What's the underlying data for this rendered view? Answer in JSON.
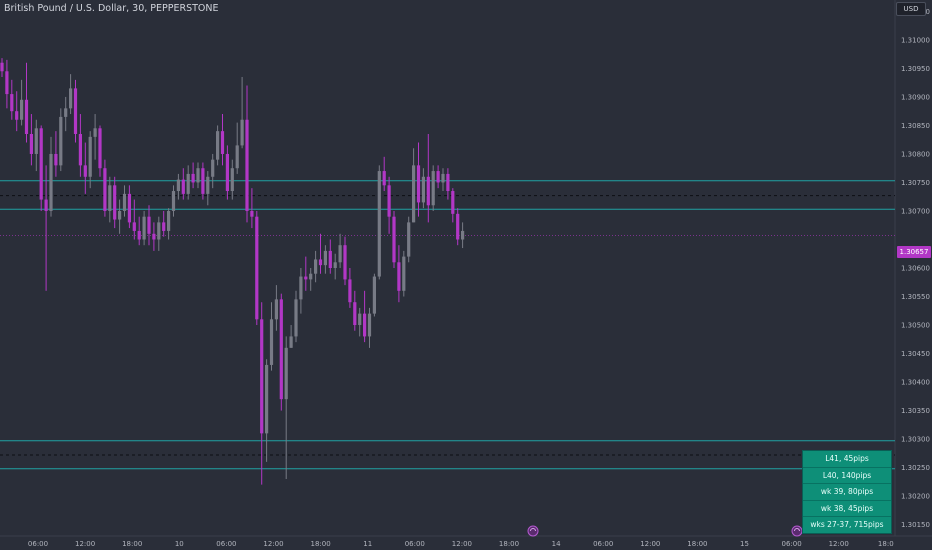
{
  "header": {
    "symbol_title": "British Pound / U.S. Dollar, 30, PEPPERSTONE",
    "currency_button": "USD"
  },
  "price_scale": {
    "last_price": "1.30657"
  },
  "pips_panel": {
    "rows": [
      "L41, 45pips",
      "L40, 140pips",
      "wk 39, 80pips",
      "wk 38, 45pips",
      "wks 27-37, 715pips"
    ]
  },
  "colors": {
    "background": "#2a2e39",
    "bull_candle": "#787b86",
    "bear_candle": "#b237c6",
    "horizontal_line": "#1fa2a3",
    "dashed_line": "#0c0e14",
    "pips_panel": "#0e8f78"
  },
  "chart_data": {
    "type": "candlestick",
    "title": "British Pound / U.S. Dollar, 30, PEPPERSTONE",
    "ylim": [
      1.3013,
      1.3107
    ],
    "y_ticks": [
      "1.31050",
      "1.31000",
      "1.30950",
      "1.30900",
      "1.30850",
      "1.30800",
      "1.30750",
      "1.30700",
      "1.30600",
      "1.30550",
      "1.30500",
      "1.30450",
      "1.30400",
      "1.30350",
      "1.30300",
      "1.30250",
      "1.30200",
      "1.30150"
    ],
    "x_ticks": [
      "06:00",
      "12:00",
      "18:00",
      "10",
      "06:00",
      "12:00",
      "18:00",
      "11",
      "06:00",
      "12:00",
      "18:00",
      "14",
      "06:00",
      "12:00",
      "18:00",
      "15",
      "06:00",
      "12:00",
      "18:0"
    ],
    "horizontal_levels": [
      1.30753,
      1.30703,
      1.30297,
      1.30248
    ],
    "dashed_levels": [
      1.30727,
      1.30272
    ],
    "last_price": 1.30657,
    "candles": [
      [
        1.3096,
        1.30968,
        1.30935,
        1.30945
      ],
      [
        1.30945,
        1.30965,
        1.3088,
        1.30905
      ],
      [
        1.30905,
        1.3093,
        1.3086,
        1.30875
      ],
      [
        1.30875,
        1.3091,
        1.3084,
        1.3086
      ],
      [
        1.3086,
        1.3093,
        1.3085,
        1.30895
      ],
      [
        1.30895,
        1.3096,
        1.3082,
        1.30835
      ],
      [
        1.30835,
        1.3087,
        1.3078,
        1.308
      ],
      [
        1.308,
        1.3086,
        1.3077,
        1.30845
      ],
      [
        1.30845,
        1.3085,
        1.307,
        1.3072
      ],
      [
        1.3072,
        1.3078,
        1.3056,
        1.307
      ],
      [
        1.307,
        1.3083,
        1.3069,
        1.308
      ],
      [
        1.308,
        1.3084,
        1.3076,
        1.3078
      ],
      [
        1.3078,
        1.3088,
        1.3077,
        1.30865
      ],
      [
        1.30865,
        1.309,
        1.3084,
        1.3088
      ],
      [
        1.3088,
        1.3094,
        1.3087,
        1.30915
      ],
      [
        1.30915,
        1.3093,
        1.3082,
        1.30835
      ],
      [
        1.30835,
        1.3087,
        1.3076,
        1.3078
      ],
      [
        1.3078,
        1.3082,
        1.3073,
        1.3076
      ],
      [
        1.3076,
        1.3084,
        1.3074,
        1.3083
      ],
      [
        1.3083,
        1.3087,
        1.3079,
        1.30845
      ],
      [
        1.30845,
        1.3085,
        1.3076,
        1.30775
      ],
      [
        1.30775,
        1.3079,
        1.3069,
        1.307
      ],
      [
        1.307,
        1.3076,
        1.3068,
        1.30745
      ],
      [
        1.30745,
        1.3076,
        1.3067,
        1.30685
      ],
      [
        1.30685,
        1.3072,
        1.3066,
        1.307
      ],
      [
        1.307,
        1.30745,
        1.3069,
        1.3073
      ],
      [
        1.3073,
        1.30745,
        1.3067,
        1.3068
      ],
      [
        1.3068,
        1.3072,
        1.3065,
        1.30665
      ],
      [
        1.30665,
        1.3069,
        1.3064,
        1.3065
      ],
      [
        1.3065,
        1.307,
        1.3064,
        1.3069
      ],
      [
        1.3069,
        1.3071,
        1.3064,
        1.3066
      ],
      [
        1.3066,
        1.3068,
        1.3063,
        1.3065
      ],
      [
        1.3065,
        1.3069,
        1.3063,
        1.3068
      ],
      [
        1.3068,
        1.307,
        1.30655,
        1.30665
      ],
      [
        1.30665,
        1.30705,
        1.3065,
        1.307
      ],
      [
        1.307,
        1.30745,
        1.3069,
        1.30735
      ],
      [
        1.30735,
        1.30765,
        1.3072,
        1.30755
      ],
      [
        1.30755,
        1.30775,
        1.3072,
        1.3073
      ],
      [
        1.3073,
        1.3078,
        1.3072,
        1.30765
      ],
      [
        1.30765,
        1.30785,
        1.3074,
        1.3075
      ],
      [
        1.3075,
        1.30785,
        1.3074,
        1.30775
      ],
      [
        1.30775,
        1.30785,
        1.3072,
        1.3073
      ],
      [
        1.3073,
        1.3077,
        1.3071,
        1.3076
      ],
      [
        1.3076,
        1.308,
        1.3074,
        1.3079
      ],
      [
        1.3079,
        1.3085,
        1.3078,
        1.3084
      ],
      [
        1.3084,
        1.3087,
        1.3078,
        1.308
      ],
      [
        1.308,
        1.30815,
        1.3072,
        1.30735
      ],
      [
        1.30735,
        1.3079,
        1.3072,
        1.30775
      ],
      [
        1.30775,
        1.30855,
        1.30765,
        1.30815
      ],
      [
        1.30815,
        1.30935,
        1.3081,
        1.3086
      ],
      [
        1.3086,
        1.3092,
        1.3068,
        1.307
      ],
      [
        1.307,
        1.3074,
        1.3067,
        1.3069
      ],
      [
        1.3069,
        1.307,
        1.305,
        1.3051
      ],
      [
        1.3051,
        1.3054,
        1.3022,
        1.3031
      ],
      [
        1.3031,
        1.3044,
        1.3026,
        1.3043
      ],
      [
        1.3043,
        1.3054,
        1.3042,
        1.3051
      ],
      [
        1.3051,
        1.3057,
        1.3049,
        1.30545
      ],
      [
        1.30545,
        1.30555,
        1.3035,
        1.3037
      ],
      [
        1.3037,
        1.3048,
        1.3023,
        1.3046
      ],
      [
        1.3046,
        1.305,
        1.3046,
        1.3048
      ],
      [
        1.3048,
        1.3056,
        1.3047,
        1.30545
      ],
      [
        1.30545,
        1.306,
        1.3052,
        1.30585
      ],
      [
        1.30585,
        1.3062,
        1.3056,
        1.3058
      ],
      [
        1.3058,
        1.306,
        1.3056,
        1.3059
      ],
      [
        1.3059,
        1.3063,
        1.30575,
        1.30615
      ],
      [
        1.30615,
        1.3066,
        1.3059,
        1.30605
      ],
      [
        1.30605,
        1.3064,
        1.3059,
        1.3063
      ],
      [
        1.3063,
        1.3065,
        1.3059,
        1.306
      ],
      [
        1.306,
        1.30625,
        1.3058,
        1.3061
      ],
      [
        1.3061,
        1.3066,
        1.306,
        1.3064
      ],
      [
        1.3064,
        1.30655,
        1.3057,
        1.3058
      ],
      [
        1.3058,
        1.306,
        1.3053,
        1.3054
      ],
      [
        1.3054,
        1.3056,
        1.3049,
        1.305
      ],
      [
        1.305,
        1.3053,
        1.3048,
        1.3052
      ],
      [
        1.3052,
        1.3056,
        1.3047,
        1.3048
      ],
      [
        1.3048,
        1.3053,
        1.3046,
        1.3052
      ],
      [
        1.3052,
        1.3059,
        1.30515,
        1.30585
      ],
      [
        1.30585,
        1.3078,
        1.3058,
        1.3077
      ],
      [
        1.3077,
        1.30795,
        1.30735,
        1.30745
      ],
      [
        1.30745,
        1.3076,
        1.3066,
        1.3069
      ],
      [
        1.3069,
        1.307,
        1.306,
        1.3061
      ],
      [
        1.3061,
        1.3064,
        1.3054,
        1.3056
      ],
      [
        1.3056,
        1.3063,
        1.3055,
        1.3062
      ],
      [
        1.3062,
        1.3069,
        1.3061,
        1.3068
      ],
      [
        1.3068,
        1.3081,
        1.3068,
        1.3078
      ],
      [
        1.3078,
        1.3082,
        1.3069,
        1.30715
      ],
      [
        1.30715,
        1.30775,
        1.30705,
        1.3076
      ],
      [
        1.3076,
        1.30835,
        1.3068,
        1.3071
      ],
      [
        1.3071,
        1.3078,
        1.307,
        1.3077
      ],
      [
        1.3077,
        1.3078,
        1.3074,
        1.3075
      ],
      [
        1.3075,
        1.30775,
        1.30735,
        1.30765
      ],
      [
        1.30765,
        1.30775,
        1.3072,
        1.30735
      ],
      [
        1.30735,
        1.3074,
        1.3068,
        1.30695
      ],
      [
        1.30695,
        1.30705,
        1.3064,
        1.3065
      ],
      [
        1.3065,
        1.3068,
        1.30635,
        1.30665
      ]
    ]
  }
}
